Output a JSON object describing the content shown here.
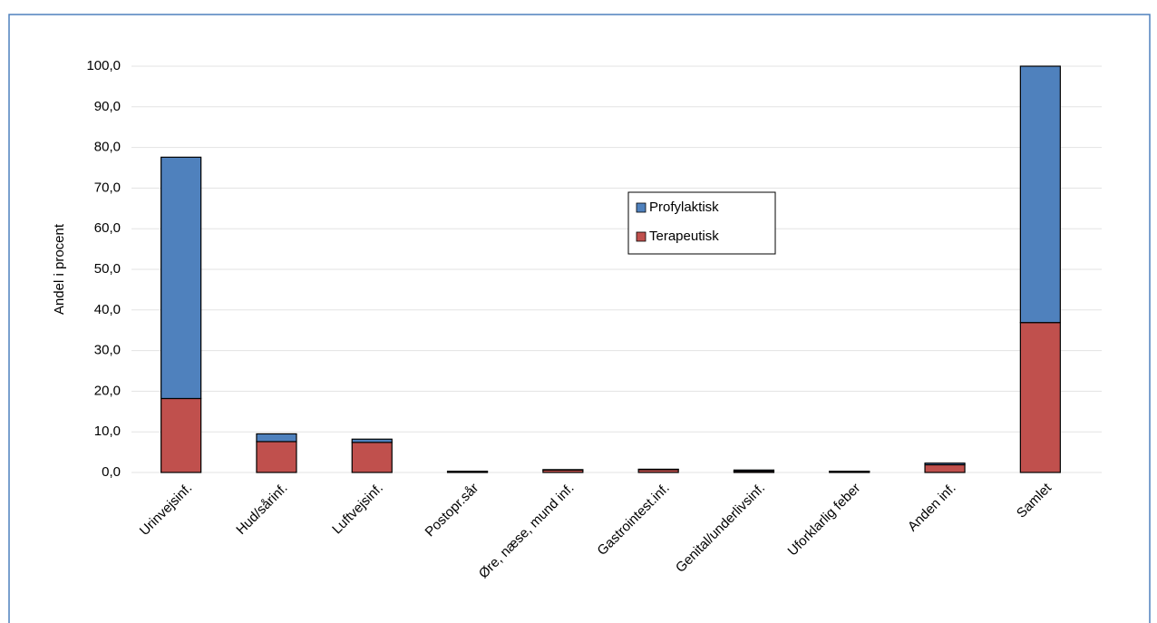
{
  "chart_data": {
    "type": "stacked-bar",
    "y_label": "Andel i procent",
    "categories": [
      "Urinvejsinf.",
      "Hud/sårinf.",
      "Luftvejsinf.",
      "Postopr.sår",
      "Øre, næse, mund inf.",
      "Gastrointest.inf.",
      "Genital/underlivsinf.",
      "Uforklarlig feber",
      "Anden inf.",
      "Samlet"
    ],
    "series": [
      {
        "name": "Terapeutisk",
        "color": "#c0504d",
        "values": [
          18.2,
          7.6,
          7.4,
          0.2,
          0.6,
          0.7,
          0.3,
          0.2,
          1.9,
          36.9
        ]
      },
      {
        "name": "Profylaktisk",
        "color": "#4f81bd",
        "values": [
          59.4,
          1.9,
          0.8,
          0.1,
          0.1,
          0.1,
          0.3,
          0.1,
          0.4,
          63.1
        ]
      }
    ],
    "ylim": [
      0,
      100
    ],
    "yticks": [
      {
        "value": 0,
        "label": "0,0"
      },
      {
        "value": 10,
        "label": "10,0"
      },
      {
        "value": 20,
        "label": "20,0"
      },
      {
        "value": 30,
        "label": "30,0"
      },
      {
        "value": 40,
        "label": "40,0"
      },
      {
        "value": 50,
        "label": "50,0"
      },
      {
        "value": 60,
        "label": "60,0"
      },
      {
        "value": 70,
        "label": "70,0"
      },
      {
        "value": 80,
        "label": "80,0"
      },
      {
        "value": 90,
        "label": "90,0"
      },
      {
        "value": 100,
        "label": "100,0"
      }
    ],
    "grid": true
  }
}
